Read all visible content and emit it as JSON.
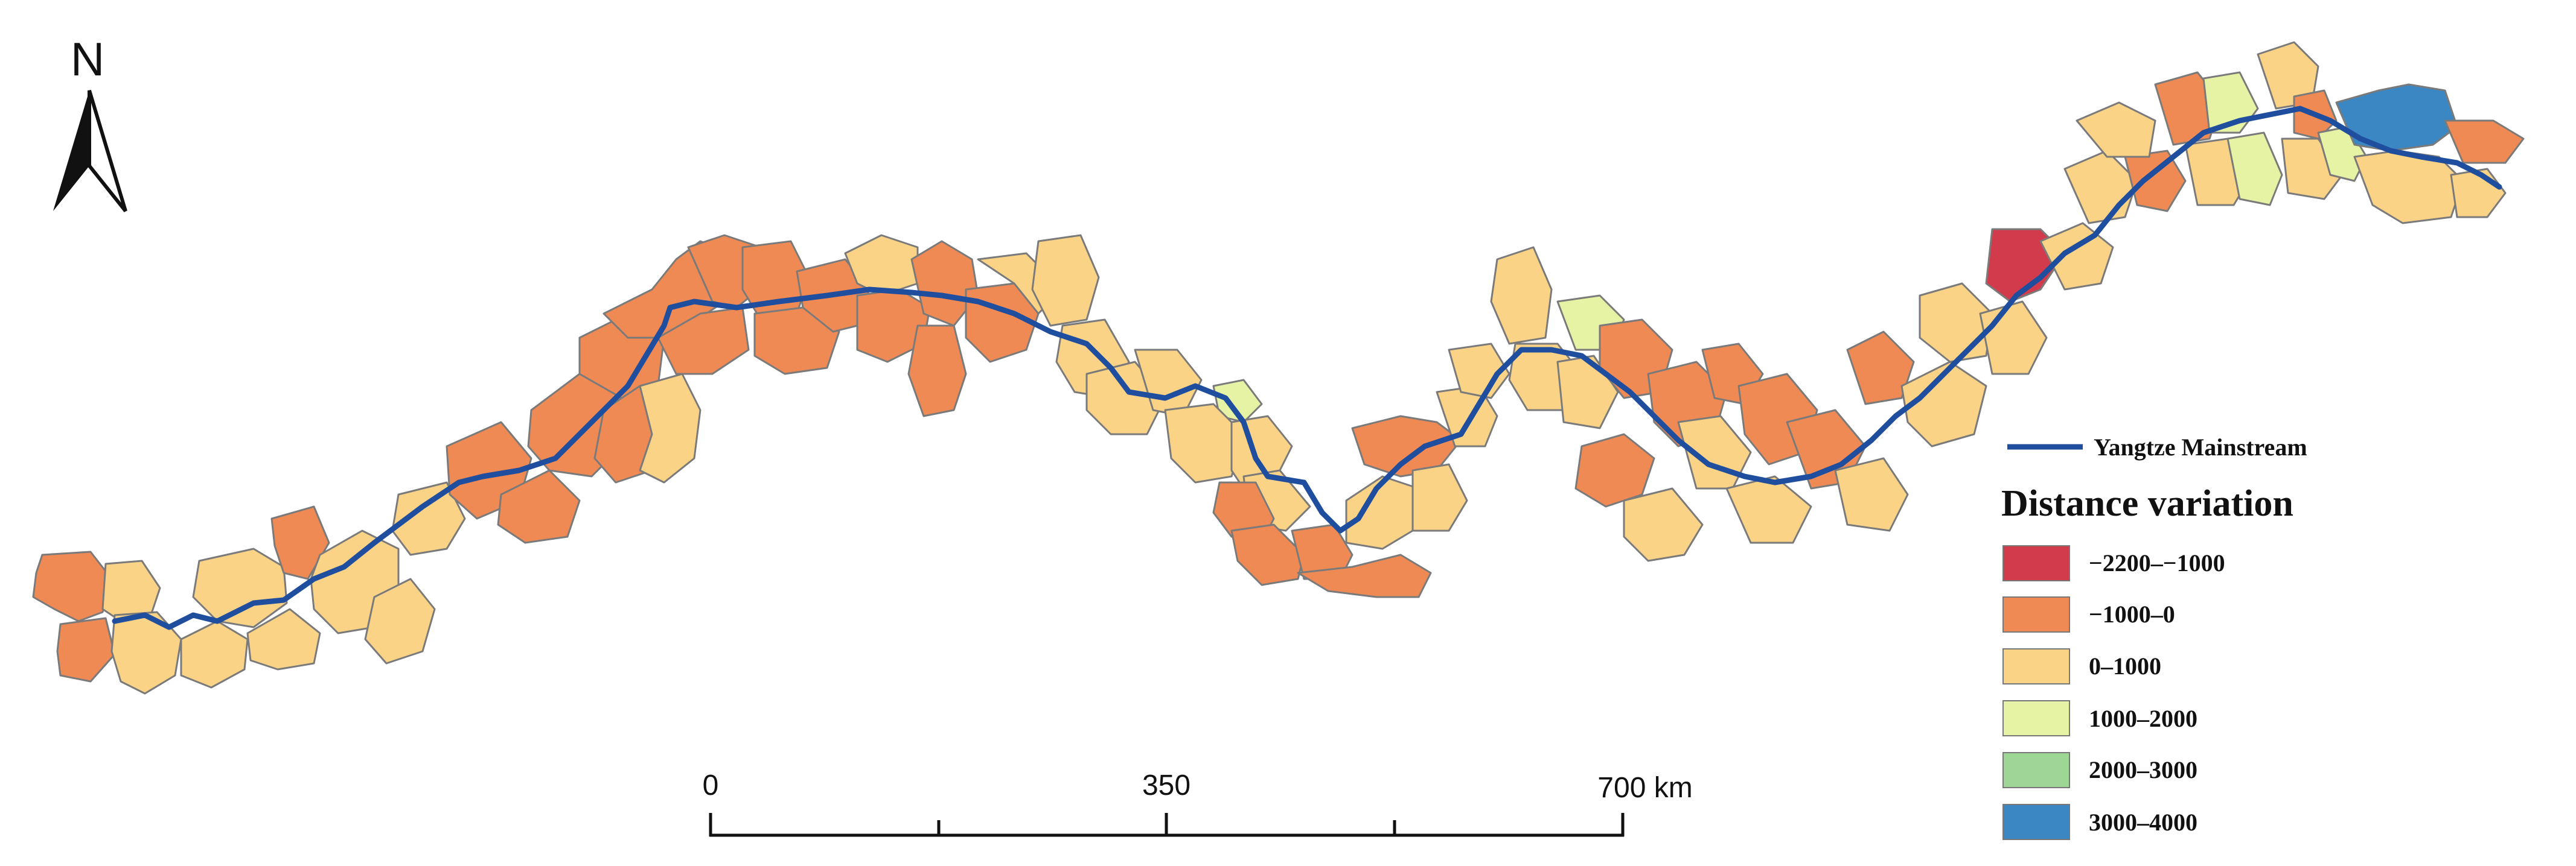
{
  "map": {
    "north_arrow": {
      "label": "N",
      "icon": "north-arrow-icon"
    },
    "river": {
      "label": "Yangtze Mainstream",
      "color": "#1f4e9e"
    },
    "legend": {
      "title": "Distance variation",
      "classes": [
        {
          "label": "−2200–−1000",
          "color": "#d23b4b"
        },
        {
          "label": "−1000–0",
          "color": "#f08a54"
        },
        {
          "label": "0–1000",
          "color": "#fad387"
        },
        {
          "label": "1000–2000",
          "color": "#e6f3a4"
        },
        {
          "label": "2000–3000",
          "color": "#9ed695"
        },
        {
          "label": "3000–4000",
          "color": "#3a87c4"
        }
      ]
    },
    "scale_bar": {
      "ticks": [
        "0",
        "350",
        "700 km"
      ]
    }
  }
}
